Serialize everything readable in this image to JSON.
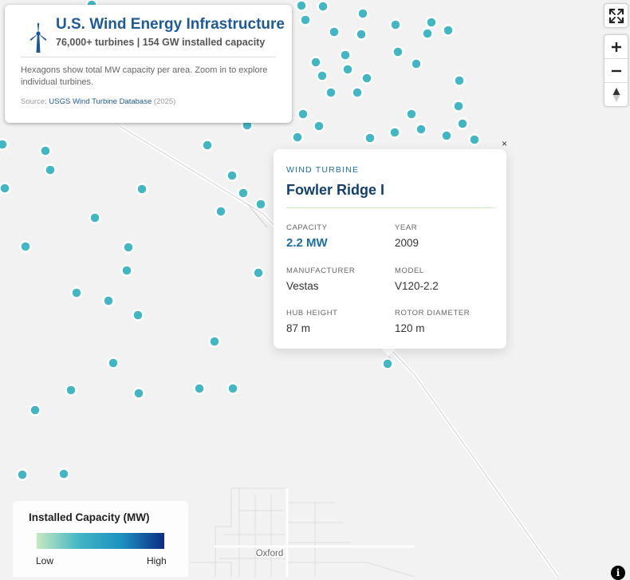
{
  "map": {
    "place_labels": [
      {
        "name": "Oxford"
      }
    ]
  },
  "info_panel": {
    "icon": "wind-turbine-icon",
    "title": "U.S. Wind Energy Infrastructure",
    "subtitle": "76,000+ turbines | 154 GW installed capacity",
    "description": "Hexagons show total MW capacity per area. Zoom in to explore individual turbines.",
    "source_prefix": "Source:",
    "source_link": "USGS Wind Turbine Database",
    "source_year": "(2025)"
  },
  "controls": {
    "fullscreen_icon": "fullscreen-icon",
    "zoom_in_icon": "plus-icon",
    "zoom_out_icon": "minus-icon",
    "compass_icon": "compass-icon"
  },
  "popup": {
    "close": "×",
    "type_label": "WIND TURBINE",
    "name": "Fowler Ridge I",
    "attributes": [
      {
        "label": "CAPACITY",
        "value": "2.2 MW",
        "highlight": true
      },
      {
        "label": "YEAR",
        "value": "2009"
      },
      {
        "label": "MANUFACTURER",
        "value": "Vestas"
      },
      {
        "label": "MODEL",
        "value": "V120-2.2"
      },
      {
        "label": "HUB HEIGHT",
        "value": "87 m"
      },
      {
        "label": "ROTOR DIAMETER",
        "value": "120 m"
      }
    ]
  },
  "legend": {
    "title": "Installed Capacity (MW)",
    "low": "Low",
    "high": "High",
    "colors": [
      "#c7e9c0",
      "#41b6c4",
      "#1d91c0",
      "#0c2c84"
    ]
  },
  "colors": {
    "turbine": "#41b6c4",
    "accent": "#1d5a96",
    "map_background": "#f2f2f2"
  },
  "attribution_icon": "info-icon"
}
